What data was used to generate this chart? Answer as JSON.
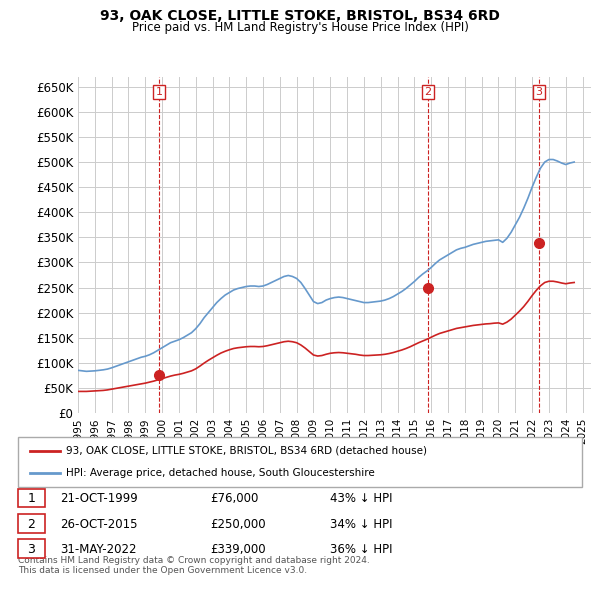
{
  "title": "93, OAK CLOSE, LITTLE STOKE, BRISTOL, BS34 6RD",
  "subtitle": "Price paid vs. HM Land Registry's House Price Index (HPI)",
  "ylabel_ticks": [
    "£0",
    "£50K",
    "£100K",
    "£150K",
    "£200K",
    "£250K",
    "£300K",
    "£350K",
    "£400K",
    "£450K",
    "£500K",
    "£550K",
    "£600K",
    "£650K"
  ],
  "ytick_values": [
    0,
    50000,
    100000,
    150000,
    200000,
    250000,
    300000,
    350000,
    400000,
    450000,
    500000,
    550000,
    600000,
    650000
  ],
  "ylim": [
    0,
    670000
  ],
  "xlim_start": 1995.0,
  "xlim_end": 2025.5,
  "hpi_color": "#6699cc",
  "price_color": "#cc2222",
  "grid_color": "#cccccc",
  "bg_color": "#ffffff",
  "sale_points": [
    {
      "year": 1999.806,
      "price": 76000,
      "label": "1"
    },
    {
      "year": 2015.817,
      "price": 250000,
      "label": "2"
    },
    {
      "year": 2022.414,
      "price": 339000,
      "label": "3"
    }
  ],
  "vline_color": "#cc2222",
  "legend_label_price": "93, OAK CLOSE, LITTLE STOKE, BRISTOL, BS34 6RD (detached house)",
  "legend_label_hpi": "HPI: Average price, detached house, South Gloucestershire",
  "table_rows": [
    {
      "num": "1",
      "date": "21-OCT-1999",
      "price": "£76,000",
      "hpi": "43% ↓ HPI"
    },
    {
      "num": "2",
      "date": "26-OCT-2015",
      "price": "£250,000",
      "hpi": "34% ↓ HPI"
    },
    {
      "num": "3",
      "date": "31-MAY-2022",
      "price": "£339,000",
      "hpi": "36% ↓ HPI"
    }
  ],
  "footnote": "Contains HM Land Registry data © Crown copyright and database right 2024.\nThis data is licensed under the Open Government Licence v3.0.",
  "hpi_data": {
    "years": [
      1995.0,
      1995.25,
      1995.5,
      1995.75,
      1996.0,
      1996.25,
      1996.5,
      1996.75,
      1997.0,
      1997.25,
      1997.5,
      1997.75,
      1998.0,
      1998.25,
      1998.5,
      1998.75,
      1999.0,
      1999.25,
      1999.5,
      1999.75,
      2000.0,
      2000.25,
      2000.5,
      2000.75,
      2001.0,
      2001.25,
      2001.5,
      2001.75,
      2002.0,
      2002.25,
      2002.5,
      2002.75,
      2003.0,
      2003.25,
      2003.5,
      2003.75,
      2004.0,
      2004.25,
      2004.5,
      2004.75,
      2005.0,
      2005.25,
      2005.5,
      2005.75,
      2006.0,
      2006.25,
      2006.5,
      2006.75,
      2007.0,
      2007.25,
      2007.5,
      2007.75,
      2008.0,
      2008.25,
      2008.5,
      2008.75,
      2009.0,
      2009.25,
      2009.5,
      2009.75,
      2010.0,
      2010.25,
      2010.5,
      2010.75,
      2011.0,
      2011.25,
      2011.5,
      2011.75,
      2012.0,
      2012.25,
      2012.5,
      2012.75,
      2013.0,
      2013.25,
      2013.5,
      2013.75,
      2014.0,
      2014.25,
      2014.5,
      2014.75,
      2015.0,
      2015.25,
      2015.5,
      2015.75,
      2016.0,
      2016.25,
      2016.5,
      2016.75,
      2017.0,
      2017.25,
      2017.5,
      2017.75,
      2018.0,
      2018.25,
      2018.5,
      2018.75,
      2019.0,
      2019.25,
      2019.5,
      2019.75,
      2020.0,
      2020.25,
      2020.5,
      2020.75,
      2021.0,
      2021.25,
      2021.5,
      2021.75,
      2022.0,
      2022.25,
      2022.5,
      2022.75,
      2023.0,
      2023.25,
      2023.5,
      2023.75,
      2024.0,
      2024.25,
      2024.5
    ],
    "values": [
      85000,
      84000,
      83000,
      83500,
      84000,
      85000,
      86000,
      87500,
      90000,
      93000,
      96000,
      99000,
      102000,
      105000,
      108000,
      111000,
      113000,
      116000,
      120000,
      125000,
      130000,
      135000,
      140000,
      143000,
      146000,
      150000,
      155000,
      160000,
      168000,
      178000,
      190000,
      200000,
      210000,
      220000,
      228000,
      235000,
      240000,
      245000,
      248000,
      250000,
      252000,
      253000,
      253000,
      252000,
      253000,
      256000,
      260000,
      264000,
      268000,
      272000,
      274000,
      272000,
      268000,
      260000,
      248000,
      235000,
      222000,
      218000,
      220000,
      225000,
      228000,
      230000,
      231000,
      230000,
      228000,
      226000,
      224000,
      222000,
      220000,
      220000,
      221000,
      222000,
      223000,
      225000,
      228000,
      232000,
      237000,
      242000,
      248000,
      255000,
      262000,
      270000,
      277000,
      283000,
      290000,
      298000,
      305000,
      310000,
      315000,
      320000,
      325000,
      328000,
      330000,
      333000,
      336000,
      338000,
      340000,
      342000,
      343000,
      344000,
      345000,
      340000,
      348000,
      360000,
      375000,
      390000,
      408000,
      428000,
      450000,
      470000,
      488000,
      500000,
      505000,
      505000,
      502000,
      498000,
      495000,
      498000,
      500000
    ]
  },
  "price_hpi_data": {
    "years": [
      1995.0,
      1995.25,
      1995.5,
      1995.75,
      1996.0,
      1996.25,
      1996.5,
      1996.75,
      1997.0,
      1997.25,
      1997.5,
      1997.75,
      1998.0,
      1998.25,
      1998.5,
      1998.75,
      1999.0,
      1999.25,
      1999.5,
      1999.75,
      2000.0,
      2000.25,
      2000.5,
      2000.75,
      2001.0,
      2001.25,
      2001.5,
      2001.75,
      2002.0,
      2002.25,
      2002.5,
      2002.75,
      2003.0,
      2003.25,
      2003.5,
      2003.75,
      2004.0,
      2004.25,
      2004.5,
      2004.75,
      2005.0,
      2005.25,
      2005.5,
      2005.75,
      2006.0,
      2006.25,
      2006.5,
      2006.75,
      2007.0,
      2007.25,
      2007.5,
      2007.75,
      2008.0,
      2008.25,
      2008.5,
      2008.75,
      2009.0,
      2009.25,
      2009.5,
      2009.75,
      2010.0,
      2010.25,
      2010.5,
      2010.75,
      2011.0,
      2011.25,
      2011.5,
      2011.75,
      2012.0,
      2012.25,
      2012.5,
      2012.75,
      2013.0,
      2013.25,
      2013.5,
      2013.75,
      2014.0,
      2014.25,
      2014.5,
      2014.75,
      2015.0,
      2015.25,
      2015.5,
      2015.75,
      2016.0,
      2016.25,
      2016.5,
      2016.75,
      2017.0,
      2017.25,
      2017.5,
      2017.75,
      2018.0,
      2018.25,
      2018.5,
      2018.75,
      2019.0,
      2019.25,
      2019.5,
      2019.75,
      2020.0,
      2020.25,
      2020.5,
      2020.75,
      2021.0,
      2021.25,
      2021.5,
      2021.75,
      2022.0,
      2022.25,
      2022.5,
      2022.75,
      2023.0,
      2023.25,
      2023.5,
      2023.75,
      2024.0,
      2024.25,
      2024.5
    ],
    "values": [
      43000,
      43000,
      43000,
      43500,
      44000,
      44500,
      45000,
      46000,
      47500,
      49000,
      50500,
      52000,
      53500,
      55000,
      56500,
      58000,
      59500,
      61500,
      63500,
      66000,
      68500,
      71000,
      73500,
      75500,
      77000,
      79000,
      81500,
      84000,
      88000,
      93500,
      99500,
      105000,
      110000,
      115000,
      119500,
      123000,
      126000,
      128500,
      130000,
      131000,
      132000,
      132500,
      132500,
      132000,
      132500,
      134000,
      136000,
      138000,
      140000,
      142000,
      143000,
      142000,
      140000,
      135500,
      129500,
      122500,
      115500,
      113500,
      114500,
      117000,
      119000,
      120000,
      120500,
      120000,
      119000,
      118000,
      117000,
      115500,
      114500,
      114500,
      115000,
      115500,
      116000,
      117000,
      118500,
      120500,
      123000,
      125500,
      128500,
      132000,
      136000,
      140000,
      143500,
      147000,
      151000,
      155000,
      158500,
      161000,
      163500,
      166000,
      168500,
      170000,
      171500,
      173000,
      174500,
      175500,
      176500,
      177500,
      178000,
      179000,
      179500,
      177000,
      181000,
      187000,
      195000,
      203000,
      212000,
      222500,
      234000,
      244500,
      253500,
      260000,
      262500,
      262500,
      261000,
      259000,
      257500,
      259000,
      260000
    ]
  }
}
